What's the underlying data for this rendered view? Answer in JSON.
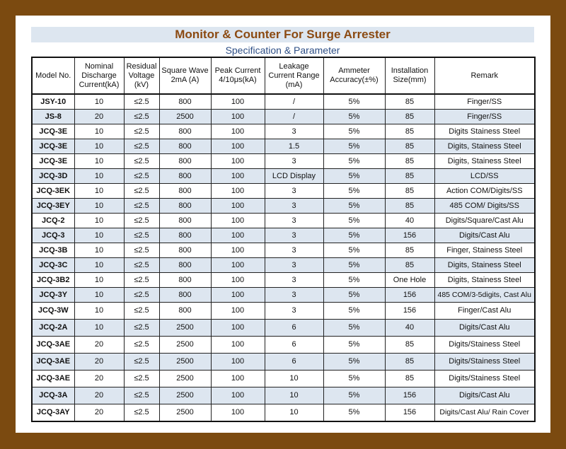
{
  "title": "Monitor & Counter For Surge Arrester",
  "subtitle": "Specification & Parameter",
  "colors": {
    "background": "#7b4a10",
    "title": "#8b4a12",
    "subtitle": "#2e4f86",
    "band": "#dde6f0"
  },
  "headers": [
    "Model No.",
    "Nominal Discharge Current(kA)",
    "Residual Voltage (kV)",
    "Square Wave 2mA (A)",
    "Peak Current 4/10μs(kA)",
    "Leakage Current Range (mA)",
    "Ammeter Accuracy(±%)",
    "Installation Size(mm)",
    "Remark"
  ],
  "rows": [
    [
      "JSY-10",
      "10",
      "≤2.5",
      "800",
      "100",
      "/",
      "5%",
      "85",
      "Finger/SS"
    ],
    [
      "JS-8",
      "20",
      "≤2.5",
      "2500",
      "100",
      "/",
      "5%",
      "85",
      "Finger/SS"
    ],
    [
      "JCQ-3E",
      "10",
      "≤2.5",
      "800",
      "100",
      "3",
      "5%",
      "85",
      "Digits Stainess Steel"
    ],
    [
      "JCQ-3E",
      "10",
      "≤2.5",
      "800",
      "100",
      "1.5",
      "5%",
      "85",
      "Digits, Stainess Steel"
    ],
    [
      "JCQ-3E",
      "10",
      "≤2.5",
      "800",
      "100",
      "3",
      "5%",
      "85",
      "Digits, Stainess Steel"
    ],
    [
      "JCQ-3D",
      "10",
      "≤2.5",
      "800",
      "100",
      "LCD Display",
      "5%",
      "85",
      "LCD/SS"
    ],
    [
      "JCQ-3EK",
      "10",
      "≤2.5",
      "800",
      "100",
      "3",
      "5%",
      "85",
      "Action COM/Digits/SS"
    ],
    [
      "JCQ-3EY",
      "10",
      "≤2.5",
      "800",
      "100",
      "3",
      "5%",
      "85",
      "485 COM/ Digits/SS"
    ],
    [
      "JCQ-2",
      "10",
      "≤2.5",
      "800",
      "100",
      "3",
      "5%",
      "40",
      "Digits/Square/Cast Alu"
    ],
    [
      "JCQ-3",
      "10",
      "≤2.5",
      "800",
      "100",
      "3",
      "5%",
      "156",
      "Digits/Cast Alu"
    ],
    [
      "JCQ-3B",
      "10",
      "≤2.5",
      "800",
      "100",
      "3",
      "5%",
      "85",
      "Finger, Stainess Steel"
    ],
    [
      "JCQ-3C",
      "10",
      "≤2.5",
      "800",
      "100",
      "3",
      "5%",
      "85",
      "Digits, Stainess Steel"
    ],
    [
      "JCQ-3B2",
      "10",
      "≤2.5",
      "800",
      "100",
      "3",
      "5%",
      "One Hole",
      "Digits, Stainess Steel"
    ],
    [
      "JCQ-3Y",
      "10",
      "≤2.5",
      "800",
      "100",
      "3",
      "5%",
      "156",
      "485 COM/3-5digits, Cast Alu"
    ],
    [
      "JCQ-3W",
      "10",
      "≤2.5",
      "800",
      "100",
      "3",
      "5%",
      "156",
      "Finger/Cast Alu"
    ],
    [
      "JCQ-2A",
      "10",
      "≤2.5",
      "2500",
      "100",
      "6",
      "5%",
      "40",
      "Digits/Cast Alu"
    ],
    [
      "JCQ-3AE",
      "20",
      "≤2.5",
      "2500",
      "100",
      "6",
      "5%",
      "85",
      "Digits/Stainess Steel"
    ],
    [
      "JCQ-3AE",
      "20",
      "≤2.5",
      "2500",
      "100",
      "6",
      "5%",
      "85",
      "Digits/Stainess Steel"
    ],
    [
      "JCQ-3AE",
      "20",
      "≤2.5",
      "2500",
      "100",
      "10",
      "5%",
      "85",
      "Digits/Stainess Steel"
    ],
    [
      "JCQ-3A",
      "20",
      "≤2.5",
      "2500",
      "100",
      "10",
      "5%",
      "156",
      "Digits/Cast Alu"
    ],
    [
      "JCQ-3AY",
      "20",
      "≤2.5",
      "2500",
      "100",
      "10",
      "5%",
      "156",
      "Digits/Cast Alu/ Rain Cover"
    ]
  ]
}
